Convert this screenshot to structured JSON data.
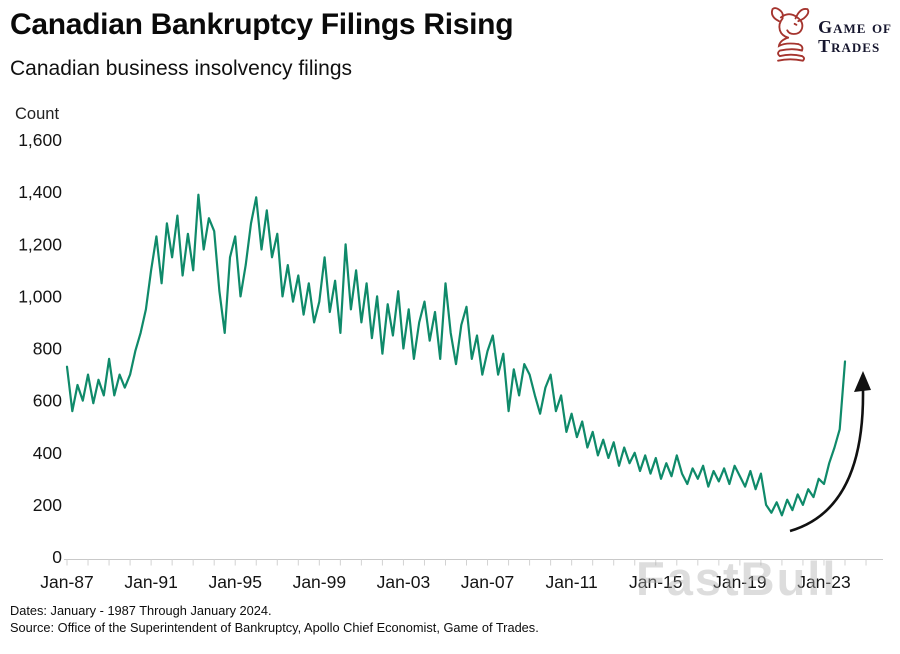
{
  "header": {
    "title": "Canadian Bankruptcy Filings Rising",
    "subtitle": "Canadian business insolvency filings"
  },
  "logo": {
    "name": "Game of Trades",
    "line1": "Game of",
    "line2": "Trades",
    "icon": "bull-icon",
    "icon_color": "#a5342e",
    "text_color": "#16162e"
  },
  "chart_data": {
    "type": "line",
    "title": "Canadian business insolvency filings",
    "ylabel": "Count",
    "xlabel": "",
    "ylim": [
      0,
      1600
    ],
    "grid": false,
    "x_start": "Jan-1987",
    "x_end": "Jan-2024",
    "y_ticks": [
      {
        "value": 0,
        "label": "0"
      },
      {
        "value": 200,
        "label": "200"
      },
      {
        "value": 400,
        "label": "400"
      },
      {
        "value": 600,
        "label": "600"
      },
      {
        "value": 800,
        "label": "800"
      },
      {
        "value": 1000,
        "label": "1,000"
      },
      {
        "value": 1200,
        "label": "1,200"
      },
      {
        "value": 1400,
        "label": "1,400"
      },
      {
        "value": 1600,
        "label": "1,600"
      }
    ],
    "x_ticks": [
      {
        "month_index": 0,
        "label": "Jan-87"
      },
      {
        "month_index": 48,
        "label": "Jan-91"
      },
      {
        "month_index": 96,
        "label": "Jan-95"
      },
      {
        "month_index": 144,
        "label": "Jan-99"
      },
      {
        "month_index": 192,
        "label": "Jan-03"
      },
      {
        "month_index": 240,
        "label": "Jan-07"
      },
      {
        "month_index": 288,
        "label": "Jan-11"
      },
      {
        "month_index": 336,
        "label": "Jan-15"
      },
      {
        "month_index": 384,
        "label": "Jan-19"
      },
      {
        "month_index": 432,
        "label": "Jan-23"
      }
    ],
    "x_minor_tick_every_months": 12,
    "series": [
      {
        "name": "Business insolvency filings",
        "color": "#0f8a6a",
        "interval_months": 3,
        "values": [
          730,
          560,
          660,
          600,
          700,
          590,
          680,
          620,
          760,
          620,
          700,
          650,
          700,
          790,
          860,
          950,
          1100,
          1230,
          1050,
          1280,
          1150,
          1310,
          1080,
          1240,
          1100,
          1390,
          1180,
          1300,
          1250,
          1020,
          860,
          1150,
          1230,
          1000,
          1120,
          1280,
          1380,
          1180,
          1330,
          1150,
          1240,
          1000,
          1120,
          980,
          1080,
          930,
          1050,
          900,
          980,
          1150,
          940,
          1060,
          860,
          1200,
          950,
          1100,
          900,
          1050,
          840,
          1000,
          780,
          970,
          850,
          1020,
          800,
          950,
          760,
          900,
          980,
          830,
          940,
          760,
          1050,
          860,
          740,
          890,
          960,
          760,
          850,
          700,
          790,
          850,
          700,
          780,
          560,
          720,
          620,
          740,
          700,
          620,
          550,
          650,
          700,
          560,
          620,
          480,
          550,
          460,
          520,
          420,
          480,
          390,
          450,
          380,
          440,
          350,
          420,
          360,
          400,
          330,
          390,
          320,
          380,
          300,
          360,
          310,
          390,
          320,
          280,
          340,
          300,
          350,
          270,
          330,
          290,
          340,
          280,
          350,
          310,
          270,
          330,
          260,
          320,
          200,
          170,
          210,
          160,
          220,
          180,
          240,
          200,
          260,
          230,
          300,
          280,
          360,
          420,
          490,
          750
        ]
      }
    ],
    "annotation": {
      "type": "curved-arrow",
      "meaning": "sharp rise at end of series",
      "color": "#111111"
    },
    "legend_position": "none"
  },
  "watermark": {
    "text": "FastBull"
  },
  "footer": {
    "dates_note": "Dates: January - 1987 Through January 2024.",
    "source_note": "Source: Office of the Superintendent of Bankruptcy, Apollo Chief Economist, Game of Trades."
  }
}
